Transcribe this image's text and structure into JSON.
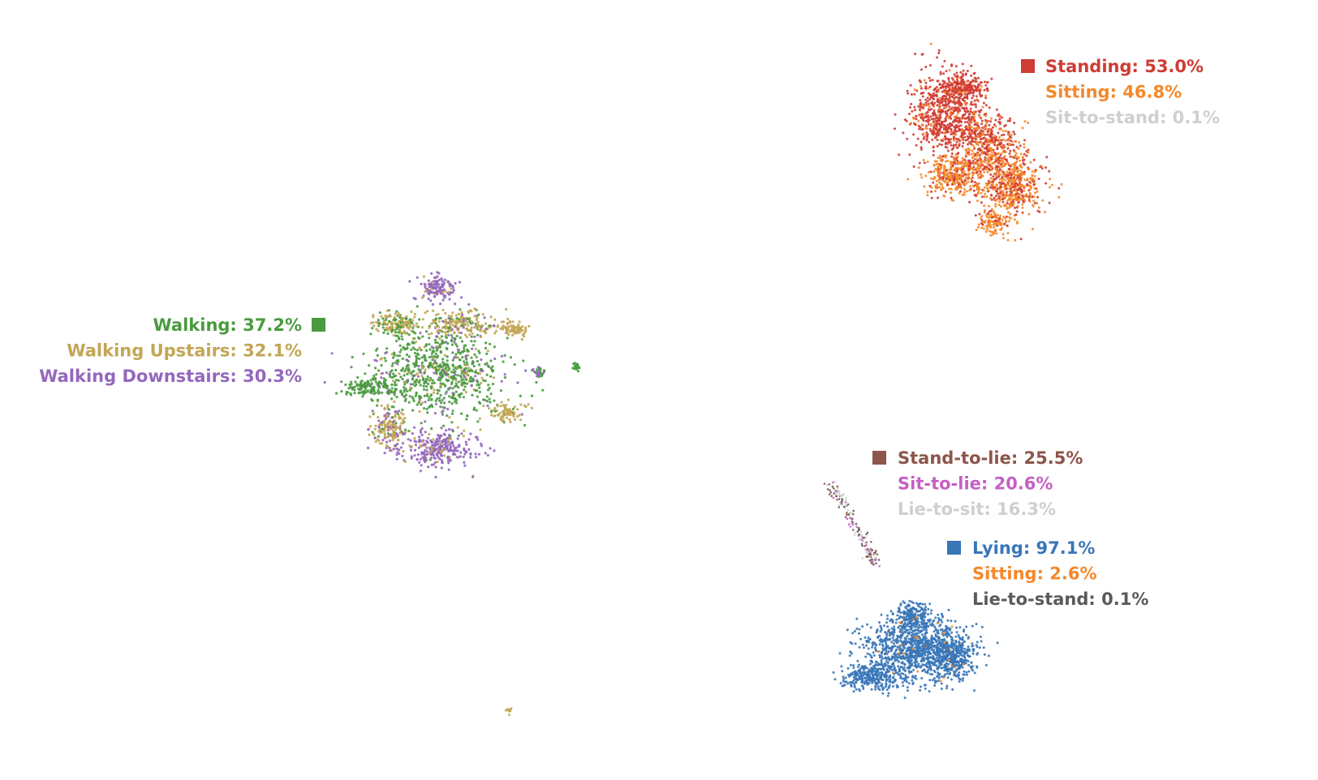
{
  "chart_data": {
    "type": "scatter",
    "title": "",
    "xlabel": "",
    "ylabel": "",
    "axes_visible": false,
    "grid": false,
    "class_colors": {
      "Walking": "#4a9a3f",
      "Walking Upstairs": "#c2a655",
      "Walking Downstairs": "#9467bd",
      "Standing": "#d03b34",
      "Sitting": "#f5882a",
      "Lying": "#3876b8",
      "Stand-to-lie": "#8c564b",
      "Sit-to-lie": "#c560c4",
      "Lie-to-sit": "#cfcfcf",
      "Sit-to-stand": "#cfcfcf",
      "Lie-to-stand": "#5a5a5a"
    },
    "clusters": [
      {
        "id": "walking",
        "marker_color": "#4a9a3f",
        "lines": [
          {
            "text": "Walking: 37.2%",
            "class": "Walking",
            "share": 37.2
          },
          {
            "text": "Walking Upstairs: 32.1%",
            "class": "Walking Upstairs",
            "share": 32.1
          },
          {
            "text": "Walking Downstairs: 30.3%",
            "class": "Walking Downstairs",
            "share": 30.3
          }
        ]
      },
      {
        "id": "standing",
        "marker_color": "#d03b34",
        "lines": [
          {
            "text": "Standing: 53.0%",
            "class": "Standing",
            "share": 53.0
          },
          {
            "text": "Sitting: 46.8%",
            "class": "Sitting",
            "share": 46.8
          },
          {
            "text": "Sit-to-stand: 0.1%",
            "class": "Sit-to-stand",
            "share": 0.1
          }
        ]
      },
      {
        "id": "transitions",
        "marker_color": "#8c564b",
        "lines": [
          {
            "text": "Stand-to-lie: 25.5%",
            "class": "Stand-to-lie",
            "share": 25.5
          },
          {
            "text": "Sit-to-lie: 20.6%",
            "class": "Sit-to-lie",
            "share": 20.6
          },
          {
            "text": "Lie-to-sit: 16.3%",
            "class": "Lie-to-sit",
            "share": 16.3
          }
        ]
      },
      {
        "id": "lying",
        "marker_color": "#3876b8",
        "lines": [
          {
            "text": "Lying: 97.1%",
            "class": "Lying",
            "share": 97.1
          },
          {
            "text": "Sitting: 2.6%",
            "class": "Sitting",
            "share": 2.6
          },
          {
            "text": "Lie-to-stand: 0.1%",
            "class": "Lie-to-stand",
            "share": 0.1
          }
        ]
      }
    ]
  }
}
